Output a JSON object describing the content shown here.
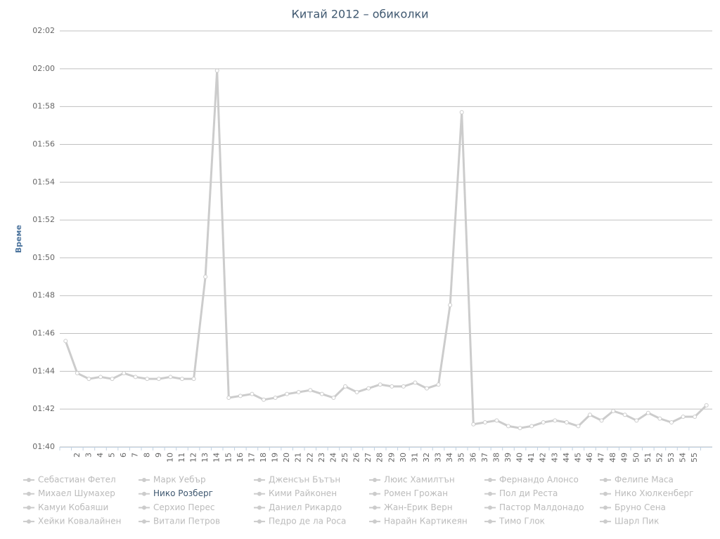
{
  "chart_data": {
    "type": "line",
    "title": "Китай 2012 – обиколки",
    "y_label": "Време",
    "categories": [
      null,
      "2",
      "3",
      "4",
      "5",
      "6",
      "7",
      "8",
      "9",
      "10",
      "11",
      "12",
      "13",
      "14",
      "15",
      "16",
      "17",
      "18",
      "19",
      "20",
      "21",
      "22",
      "23",
      "24",
      "25",
      "26",
      "27",
      "28",
      "29",
      "30",
      "31",
      "32",
      "33",
      "34",
      "35",
      "36",
      "37",
      "38",
      "39",
      "40",
      "41",
      "42",
      "43",
      "44",
      "45",
      "46",
      "47",
      "48",
      "49",
      "50",
      "51",
      "52",
      "53",
      "54",
      "55",
      null
    ],
    "ylim": [
      100,
      122
    ],
    "yticks": [
      {
        "value": 100,
        "label": "01:40"
      },
      {
        "value": 102,
        "label": "01:42"
      },
      {
        "value": 104,
        "label": "01:44"
      },
      {
        "value": 106,
        "label": "01:46"
      },
      {
        "value": 108,
        "label": "01:48"
      },
      {
        "value": 110,
        "label": "01:50"
      },
      {
        "value": 112,
        "label": "01:52"
      },
      {
        "value": 114,
        "label": "01:54"
      },
      {
        "value": 116,
        "label": "01:56"
      },
      {
        "value": 118,
        "label": "01:58"
      },
      {
        "value": 120,
        "label": "02:00"
      },
      {
        "value": 122,
        "label": "02:02"
      }
    ],
    "grid": true,
    "series": [
      {
        "name": "Себастиан Фетел",
        "visible": false
      },
      {
        "name": "Марк Уебър",
        "visible": false
      },
      {
        "name": "Дженсън Бътън",
        "visible": false
      },
      {
        "name": "Люис Хамилтън",
        "visible": false
      },
      {
        "name": "Фернандо Алонсо",
        "visible": false
      },
      {
        "name": "Фелипе Маса",
        "visible": false
      },
      {
        "name": "Михаел Шумахер",
        "visible": false
      },
      {
        "name": "Нико Розберг",
        "visible": true,
        "color": "#cccccc",
        "values": [
          105.6,
          103.9,
          103.6,
          103.7,
          103.6,
          103.9,
          103.7,
          103.6,
          103.6,
          103.7,
          103.6,
          103.6,
          109.0,
          119.9,
          102.6,
          102.7,
          102.8,
          102.5,
          102.6,
          102.8,
          102.9,
          103.0,
          102.8,
          102.6,
          103.2,
          102.9,
          103.1,
          103.3,
          103.2,
          103.2,
          103.4,
          103.1,
          103.3,
          107.5,
          117.7,
          101.2,
          101.3,
          101.4,
          101.1,
          101.0,
          101.1,
          101.3,
          101.4,
          101.3,
          101.1,
          101.7,
          101.4,
          101.9,
          101.7,
          101.4,
          101.8,
          101.5,
          101.3,
          101.6,
          101.6,
          102.2
        ]
      },
      {
        "name": "Кими Райконен",
        "visible": false
      },
      {
        "name": "Ромен Грожан",
        "visible": false
      },
      {
        "name": "Пол ди Реста",
        "visible": false
      },
      {
        "name": "Нико Хюлкенберг",
        "visible": false
      },
      {
        "name": "Камуи Кобаяши",
        "visible": false
      },
      {
        "name": "Серхио Перес",
        "visible": false
      },
      {
        "name": "Даниел Рикардо",
        "visible": false
      },
      {
        "name": "Жан-Ерик Верн",
        "visible": false
      },
      {
        "name": "Пастор Малдонадо",
        "visible": false
      },
      {
        "name": "Бруно Сена",
        "visible": false
      },
      {
        "name": "Хейки Ковалайнен",
        "visible": false
      },
      {
        "name": "Витали Петров",
        "visible": false
      },
      {
        "name": "Педро де ла Роса",
        "visible": false
      },
      {
        "name": "Нарайн Картикеян",
        "visible": false
      },
      {
        "name": "Тимо Глок",
        "visible": false
      },
      {
        "name": "Шарл Пик",
        "visible": false
      }
    ]
  }
}
